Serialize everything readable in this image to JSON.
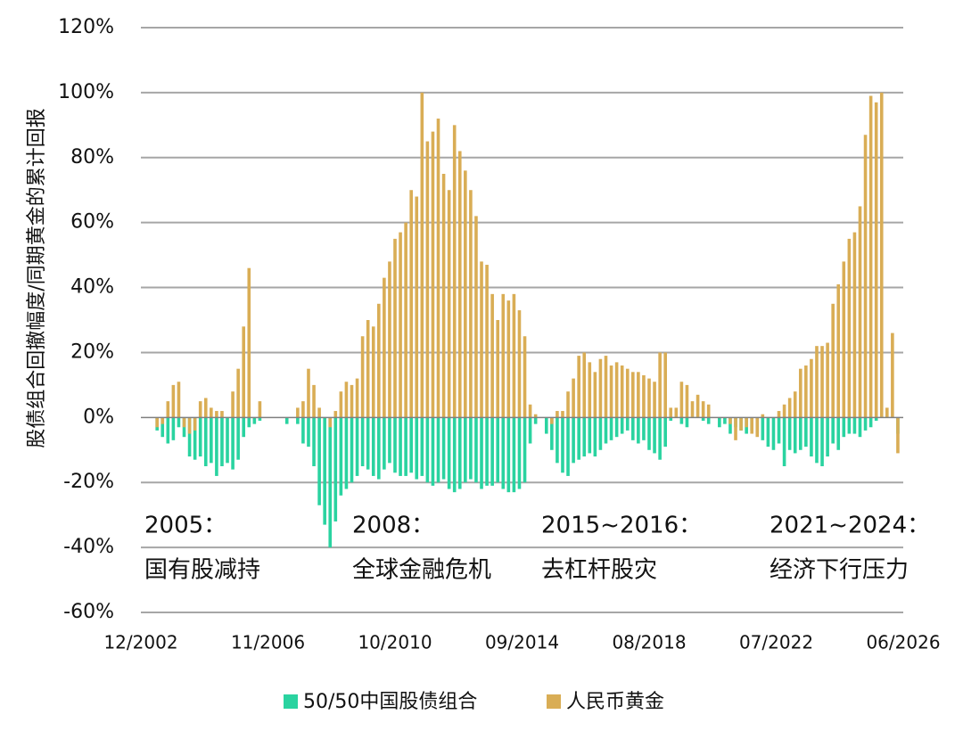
{
  "chart_data": {
    "type": "bar",
    "ylabel": "股债组合回撤幅度/同期黄金的累计回报",
    "x": [
      "06/2003",
      "08/2003",
      "10/2003",
      "12/2003",
      "02/2004",
      "04/2004",
      "06/2004",
      "08/2004",
      "10/2004",
      "12/2004",
      "02/2005",
      "04/2005",
      "06/2005",
      "08/2005",
      "10/2005",
      "12/2005",
      "02/2006",
      "04/2006",
      "06/2006",
      "08/2006",
      "10/2006",
      "12/2006",
      "02/2007",
      "04/2007",
      "06/2007",
      "08/2007",
      "10/2007",
      "12/2007",
      "02/2008",
      "04/2008",
      "06/2008",
      "08/2008",
      "10/2008",
      "12/2008",
      "02/2009",
      "04/2009",
      "06/2009",
      "08/2009",
      "10/2009",
      "12/2009",
      "02/2010",
      "04/2010",
      "06/2010",
      "08/2010",
      "10/2010",
      "12/2010",
      "02/2011",
      "04/2011",
      "06/2011",
      "08/2011",
      "10/2011",
      "12/2011",
      "02/2012",
      "04/2012",
      "06/2012",
      "08/2012",
      "10/2012",
      "12/2012",
      "02/2013",
      "04/2013",
      "06/2013",
      "08/2013",
      "10/2013",
      "12/2013",
      "02/2014",
      "04/2014",
      "06/2014",
      "08/2014",
      "10/2014",
      "12/2014",
      "02/2015",
      "04/2015",
      "06/2015",
      "08/2015",
      "10/2015",
      "12/2015",
      "02/2016",
      "04/2016",
      "06/2016",
      "08/2016",
      "10/2016",
      "12/2016",
      "02/2017",
      "04/2017",
      "06/2017",
      "08/2017",
      "10/2017",
      "12/2017",
      "02/2018",
      "04/2018",
      "06/2018",
      "08/2018",
      "10/2018",
      "12/2018",
      "02/2019",
      "04/2019",
      "06/2019",
      "08/2019",
      "10/2019",
      "12/2019",
      "02/2020",
      "04/2020",
      "06/2020",
      "08/2020",
      "10/2020",
      "12/2020",
      "02/2021",
      "04/2021",
      "06/2021",
      "08/2021",
      "10/2021",
      "12/2021",
      "02/2022",
      "04/2022",
      "06/2022",
      "08/2022",
      "10/2022",
      "12/2022",
      "02/2023",
      "04/2023",
      "06/2023",
      "08/2023",
      "10/2023",
      "12/2023",
      "02/2024",
      "04/2024",
      "06/2024",
      "08/2024",
      "10/2024",
      "12/2024",
      "02/2025",
      "04/2025",
      "06/2025",
      "08/2025",
      "10/2025",
      "12/2025",
      "02/2026",
      "04/2026"
    ],
    "series": [
      {
        "name": "50/50中国股债组合",
        "color": "#2ad3a0",
        "values": [
          -4,
          -6,
          -8,
          -7,
          -3,
          -6,
          -12,
          -13,
          -12,
          -15,
          -14,
          -18,
          -15,
          -14,
          -16,
          -13,
          -6,
          -3,
          -2,
          -1,
          0,
          0,
          0,
          0,
          -2,
          0,
          -2,
          -8,
          -9,
          -15,
          -27,
          -33,
          -40,
          -32,
          -24,
          -22,
          -20,
          -18,
          -15,
          -16,
          -18,
          -19,
          -16,
          -14,
          -17,
          -18,
          -18,
          -17,
          -19,
          -18,
          -20,
          -21,
          -20,
          -19,
          -22,
          -23,
          -22,
          -20,
          -19,
          -20,
          -22,
          -21,
          -21,
          -20,
          -22,
          -23,
          -23,
          -22,
          -20,
          -8,
          -2,
          0,
          -5,
          -10,
          -14,
          -17,
          -18,
          -14,
          -13,
          -12,
          -11,
          -12,
          -10,
          -8,
          -7,
          -6,
          -5,
          -4,
          -7,
          -8,
          -7,
          -10,
          -11,
          -13,
          -9,
          -1,
          0,
          -2,
          -3,
          0,
          0,
          -1,
          -2,
          0,
          -3,
          -2,
          -5,
          -3,
          -4,
          -5,
          -4,
          -5,
          -7,
          -9,
          -10,
          -8,
          -15,
          -10,
          -11,
          -10,
          -9,
          -12,
          -14,
          -15,
          -12,
          -8,
          -10,
          -6,
          -5,
          -5,
          -6,
          -4,
          -3,
          -1,
          0,
          0,
          0,
          -5
        ]
      },
      {
        "name": "人民币黄金",
        "color": "#d9ad55",
        "values": [
          -3,
          -2,
          5,
          10,
          11,
          -3,
          -5,
          -4,
          5,
          6,
          3,
          2,
          2,
          0,
          8,
          15,
          28,
          46,
          0,
          5,
          0,
          0,
          0,
          0,
          0,
          0,
          3,
          5,
          15,
          10,
          3,
          0,
          -3,
          2,
          8,
          11,
          10,
          12,
          25,
          30,
          28,
          35,
          43,
          48,
          55,
          57,
          60,
          70,
          68,
          100,
          85,
          88,
          92,
          75,
          70,
          90,
          82,
          76,
          70,
          62,
          48,
          47,
          38,
          30,
          38,
          36,
          38,
          33,
          25,
          4,
          1,
          0,
          0,
          -2,
          2,
          2,
          8,
          12,
          19,
          20,
          17,
          14,
          18,
          19,
          16,
          17,
          16,
          15,
          14,
          14,
          13,
          12,
          11,
          20,
          20,
          3,
          3,
          11,
          10,
          5,
          7,
          5,
          4,
          0,
          0,
          0,
          -2,
          -7,
          -4,
          -3,
          -5,
          -6,
          1,
          0,
          0,
          2,
          4,
          6,
          8,
          15,
          16,
          18,
          22,
          22,
          23,
          35,
          41,
          48,
          55,
          57,
          65,
          87,
          99,
          97,
          100,
          3,
          26,
          -11
        ]
      }
    ],
    "xlim": [
      "12/2002",
      "06/2026"
    ],
    "xticks": [
      "12/2002",
      "11/2006",
      "10/2010",
      "09/2014",
      "08/2018",
      "07/2022",
      "06/2026"
    ],
    "ylim": [
      -60,
      120
    ],
    "yticks": [
      {
        "value": -60,
        "label": "-60%"
      },
      {
        "value": -40,
        "label": "-40%"
      },
      {
        "value": -20,
        "label": "-20%"
      },
      {
        "value": 0,
        "label": "0%"
      },
      {
        "value": 20,
        "label": "20%"
      },
      {
        "value": 40,
        "label": "40%"
      },
      {
        "value": 60,
        "label": "60%"
      },
      {
        "value": 80,
        "label": "80%"
      },
      {
        "value": 100,
        "label": "100%"
      },
      {
        "value": 120,
        "label": "120%"
      }
    ],
    "grid": true,
    "legend": "bottom",
    "annotations": [
      [
        "2005：",
        "国有股减持"
      ],
      [
        "2008：",
        "全球金融危机"
      ],
      [
        "2015~2016：",
        "去杠杆股灾"
      ],
      [
        "2021~2024：",
        "经济下行压力"
      ]
    ]
  }
}
